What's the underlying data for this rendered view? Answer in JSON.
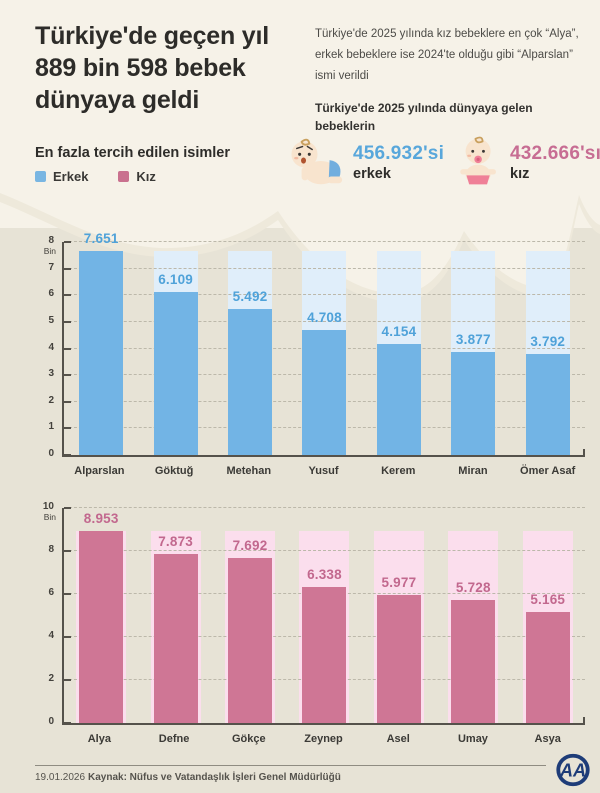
{
  "header": {
    "title": "Türkiye'de geçen yıl 889 bin 598 bebek dünyaya geldi",
    "description": "Türkiye'de 2025 yılında kız bebeklere en çok “Alya”, erkek bebeklere ise 2024'te olduğu gibi “Alparslan” ismi verildi",
    "subtitle": "Türkiye'de 2025 yılında dünyaya gelen bebeklerin",
    "legend_title": "En fazla tercih edilen isimler",
    "legend": [
      {
        "label": "Erkek",
        "color": "#79b6e2"
      },
      {
        "label": "Kız",
        "color": "#c9718e"
      }
    ],
    "stats": [
      {
        "icon": "baby-boy-icon",
        "value": "456.932'si",
        "label": "erkek",
        "color": "#58a7db"
      },
      {
        "icon": "baby-girl-icon",
        "value": "432.666'sı",
        "label": "kız",
        "color": "#c76d93"
      }
    ]
  },
  "chart_data": [
    {
      "type": "bar",
      "series_name": "Erkek",
      "categories": [
        "Alparslan",
        "Göktuğ",
        "Metehan",
        "Yusuf",
        "Kerem",
        "Miran",
        "Ömer Asaf"
      ],
      "values": [
        7.651,
        6.109,
        5.492,
        4.708,
        4.154,
        3.877,
        3.792
      ],
      "value_labels": [
        "7.651",
        "6.109",
        "5.492",
        "4.708",
        "4.154",
        "3.877",
        "3.792"
      ],
      "unit_label": "Bin",
      "ylim": [
        0,
        8
      ],
      "yticks": [
        0,
        1,
        2,
        3,
        4,
        5,
        6,
        7,
        8
      ],
      "grid": true,
      "legend_position": "top-left",
      "bar_color": "#72b4e5",
      "track_color": "#e0eefa",
      "label_color": "#4fa2d9"
    },
    {
      "type": "bar",
      "series_name": "Kız",
      "categories": [
        "Alya",
        "Defne",
        "Gökçe",
        "Zeynep",
        "Asel",
        "Umay",
        "Asya"
      ],
      "values": [
        8.953,
        7.873,
        7.692,
        6.338,
        5.977,
        5.728,
        5.165
      ],
      "value_labels": [
        "8.953",
        "7.873",
        "7.692",
        "6.338",
        "5.977",
        "5.728",
        "5.165"
      ],
      "unit_label": "Bin",
      "ylim": [
        0,
        10
      ],
      "yticks": [
        0,
        2,
        4,
        6,
        8,
        10
      ],
      "grid": true,
      "legend_position": "top-left",
      "bar_color": "#cf7695",
      "track_color": "#fbdeed",
      "label_color": "#c2688e"
    }
  ],
  "footer": {
    "date": "19.01.2026",
    "source": "Kaynak: Nüfus ve Vatandaşlık İşleri Genel Müdürlüğü",
    "logo": "AA"
  }
}
